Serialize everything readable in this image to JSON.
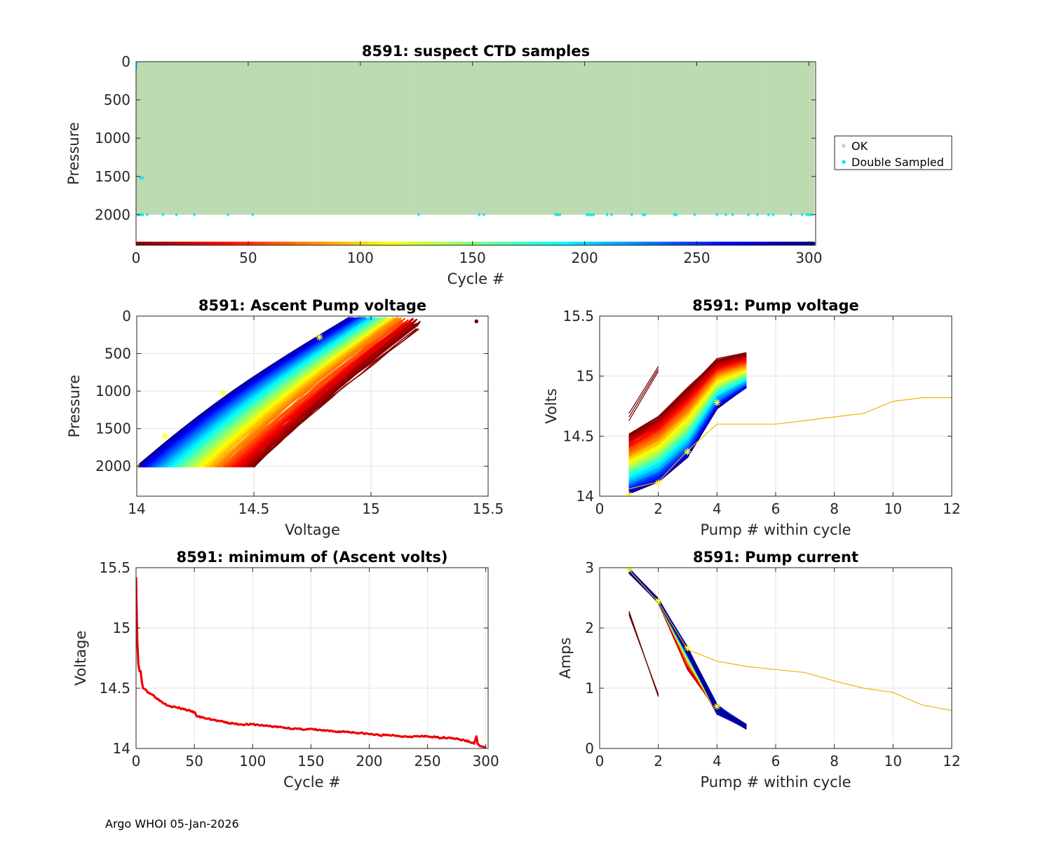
{
  "footer": "Argo WHOI 05-Jan-2026",
  "colors": {
    "ok": "#bddbb0",
    "double": "#17e6f0",
    "trend": "#ee0000",
    "outlier": "#f0b400",
    "star": "#ffff33",
    "grid": "#e3e3e3",
    "axis": "#262626"
  },
  "chart_data": [
    {
      "id": "ctd",
      "type": "scatter",
      "title": "8591: suspect CTD samples",
      "xlabel": "Cycle #",
      "ylabel": "Pressure",
      "xlim": [
        0,
        303
      ],
      "ylim": [
        0,
        2400
      ],
      "y_reversed": true,
      "xticks": [
        0,
        50,
        100,
        150,
        200,
        250,
        300
      ],
      "yticks": [
        0,
        500,
        1000,
        1500,
        2000
      ],
      "cycles": 302,
      "max_pressure": 2000,
      "legend": {
        "placement": "outside-right",
        "entries": [
          "OK",
          "Double Sampled"
        ]
      },
      "double_sampled_cycles": [
        1,
        2,
        3,
        5,
        12,
        18,
        26,
        41,
        52,
        126,
        153,
        155,
        187,
        188,
        189,
        201,
        202,
        203,
        204,
        210,
        212,
        221,
        226,
        227,
        240,
        241,
        249,
        259,
        263,
        266,
        273,
        277,
        282,
        284,
        292,
        297,
        299,
        300,
        301
      ],
      "double_sampled_mid": {
        "cycle": 2,
        "pressure_range": [
          1500,
          1530
        ]
      }
    },
    {
      "id": "ascent",
      "type": "line",
      "title": "8591: Ascent Pump voltage",
      "xlabel": "Voltage",
      "ylabel": "Pressure",
      "xlim": [
        14,
        15.5
      ],
      "ylim": [
        0,
        2400
      ],
      "y_reversed": true,
      "xticks": [
        "14",
        "14.5",
        "15",
        "15.5"
      ],
      "yticks": [
        "0",
        "500",
        "1000",
        "1500",
        "2000"
      ],
      "series_count": 302,
      "color_scale": "cycle (dark red → red → yellow → green → cyan → blue → navy)",
      "bottom_voltage_range": [
        14.0,
        14.5
      ],
      "top_voltage_range": [
        14.9,
        15.2
      ],
      "outlier_point": {
        "voltage": 15.45,
        "pressure": 70
      },
      "starred_points": [
        {
          "voltage": 14.0,
          "pressure": 2000
        },
        {
          "voltage": 14.12,
          "pressure": 1600
        },
        {
          "voltage": 14.37,
          "pressure": 1020
        },
        {
          "voltage": 14.78,
          "pressure": 280
        }
      ]
    },
    {
      "id": "pumpv",
      "type": "line",
      "title": "8591: Pump voltage",
      "xlabel": "Pump # within cycle",
      "ylabel": "Volts",
      "xlim": [
        0,
        12
      ],
      "ylim": [
        14,
        15.5
      ],
      "xticks": [
        "0",
        "2",
        "4",
        "6",
        "8",
        "10",
        "12"
      ],
      "yticks": [
        "14",
        "14.5",
        "15",
        "15.5"
      ],
      "series_count": 302,
      "early_cycle_start_range": [
        14.45,
        14.5
      ],
      "late_cycle_start_range": [
        14.02,
        14.1
      ],
      "end_range": [
        14.9,
        15.2
      ],
      "outlier_series": {
        "x": [
          1,
          2,
          3,
          4,
          5,
          6,
          7,
          8,
          9,
          10,
          11,
          12
        ],
        "y": [
          14.06,
          14.12,
          14.38,
          14.6,
          14.6,
          14.6,
          14.63,
          14.66,
          14.69,
          14.79,
          14.82,
          14.82
        ]
      },
      "short_series": {
        "x": [
          1,
          2
        ],
        "y": [
          14.63,
          15.08
        ]
      },
      "starred_points": [
        {
          "x": 1,
          "y": 14.01
        },
        {
          "x": 2,
          "y": 14.11
        },
        {
          "x": 3,
          "y": 14.37
        },
        {
          "x": 4,
          "y": 14.78
        }
      ]
    },
    {
      "id": "minv",
      "type": "line",
      "title": "8591: minimum of (Ascent volts)",
      "xlabel": "Cycle #",
      "ylabel": "Voltage",
      "xlim": [
        0,
        302
      ],
      "ylim": [
        14,
        15.5
      ],
      "xticks": [
        "0",
        "50",
        "100",
        "150",
        "200",
        "250",
        "300"
      ],
      "yticks": [
        "14",
        "14.5",
        "15",
        "15.5"
      ],
      "x": [
        0,
        1,
        2,
        3,
        4,
        5,
        6,
        8,
        10,
        15,
        20,
        25,
        30,
        40,
        50,
        52,
        55,
        60,
        70,
        80,
        90,
        100,
        110,
        120,
        130,
        140,
        150,
        160,
        170,
        180,
        190,
        200,
        210,
        220,
        230,
        240,
        250,
        260,
        270,
        280,
        285,
        290,
        292,
        293,
        295,
        300
      ],
      "y": [
        15.42,
        14.9,
        14.7,
        14.64,
        14.64,
        14.55,
        14.5,
        14.49,
        14.47,
        14.44,
        14.4,
        14.37,
        14.35,
        14.33,
        14.3,
        14.27,
        14.26,
        14.25,
        14.23,
        14.21,
        14.2,
        14.2,
        14.19,
        14.18,
        14.17,
        14.16,
        14.16,
        14.15,
        14.14,
        14.14,
        14.13,
        14.12,
        14.11,
        14.11,
        14.1,
        14.1,
        14.1,
        14.09,
        14.09,
        14.07,
        14.06,
        14.04,
        14.1,
        14.04,
        14.02,
        14.01
      ]
    },
    {
      "id": "pumpc",
      "type": "line",
      "title": "8591: Pump current",
      "xlabel": "Pump # within cycle",
      "ylabel": "Amps",
      "xlim": [
        0,
        12
      ],
      "ylim": [
        0,
        3
      ],
      "xticks": [
        "0",
        "2",
        "4",
        "6",
        "8",
        "10",
        "12"
      ],
      "yticks": [
        "0",
        "1",
        "2",
        "3"
      ],
      "series_count": 302,
      "main_x": [
        1,
        2,
        3,
        4,
        5
      ],
      "main_y_center": [
        2.95,
        2.45,
        1.62,
        0.65,
        0.36
      ],
      "outlier_series": {
        "x": [
          1,
          2,
          3,
          4,
          5,
          6,
          7,
          8,
          9,
          10,
          11,
          12
        ],
        "y": [
          2.96,
          2.43,
          1.64,
          1.45,
          1.36,
          1.31,
          1.26,
          1.12,
          1.0,
          0.93,
          0.72,
          0.63
        ]
      },
      "short_series": {
        "x": [
          1,
          2
        ],
        "y": [
          2.28,
          0.86
        ]
      },
      "starred_points": [
        {
          "x": 1,
          "y": 2.98
        },
        {
          "x": 2,
          "y": 2.45
        },
        {
          "x": 3,
          "y": 1.67
        },
        {
          "x": 4,
          "y": 0.7
        }
      ]
    }
  ]
}
